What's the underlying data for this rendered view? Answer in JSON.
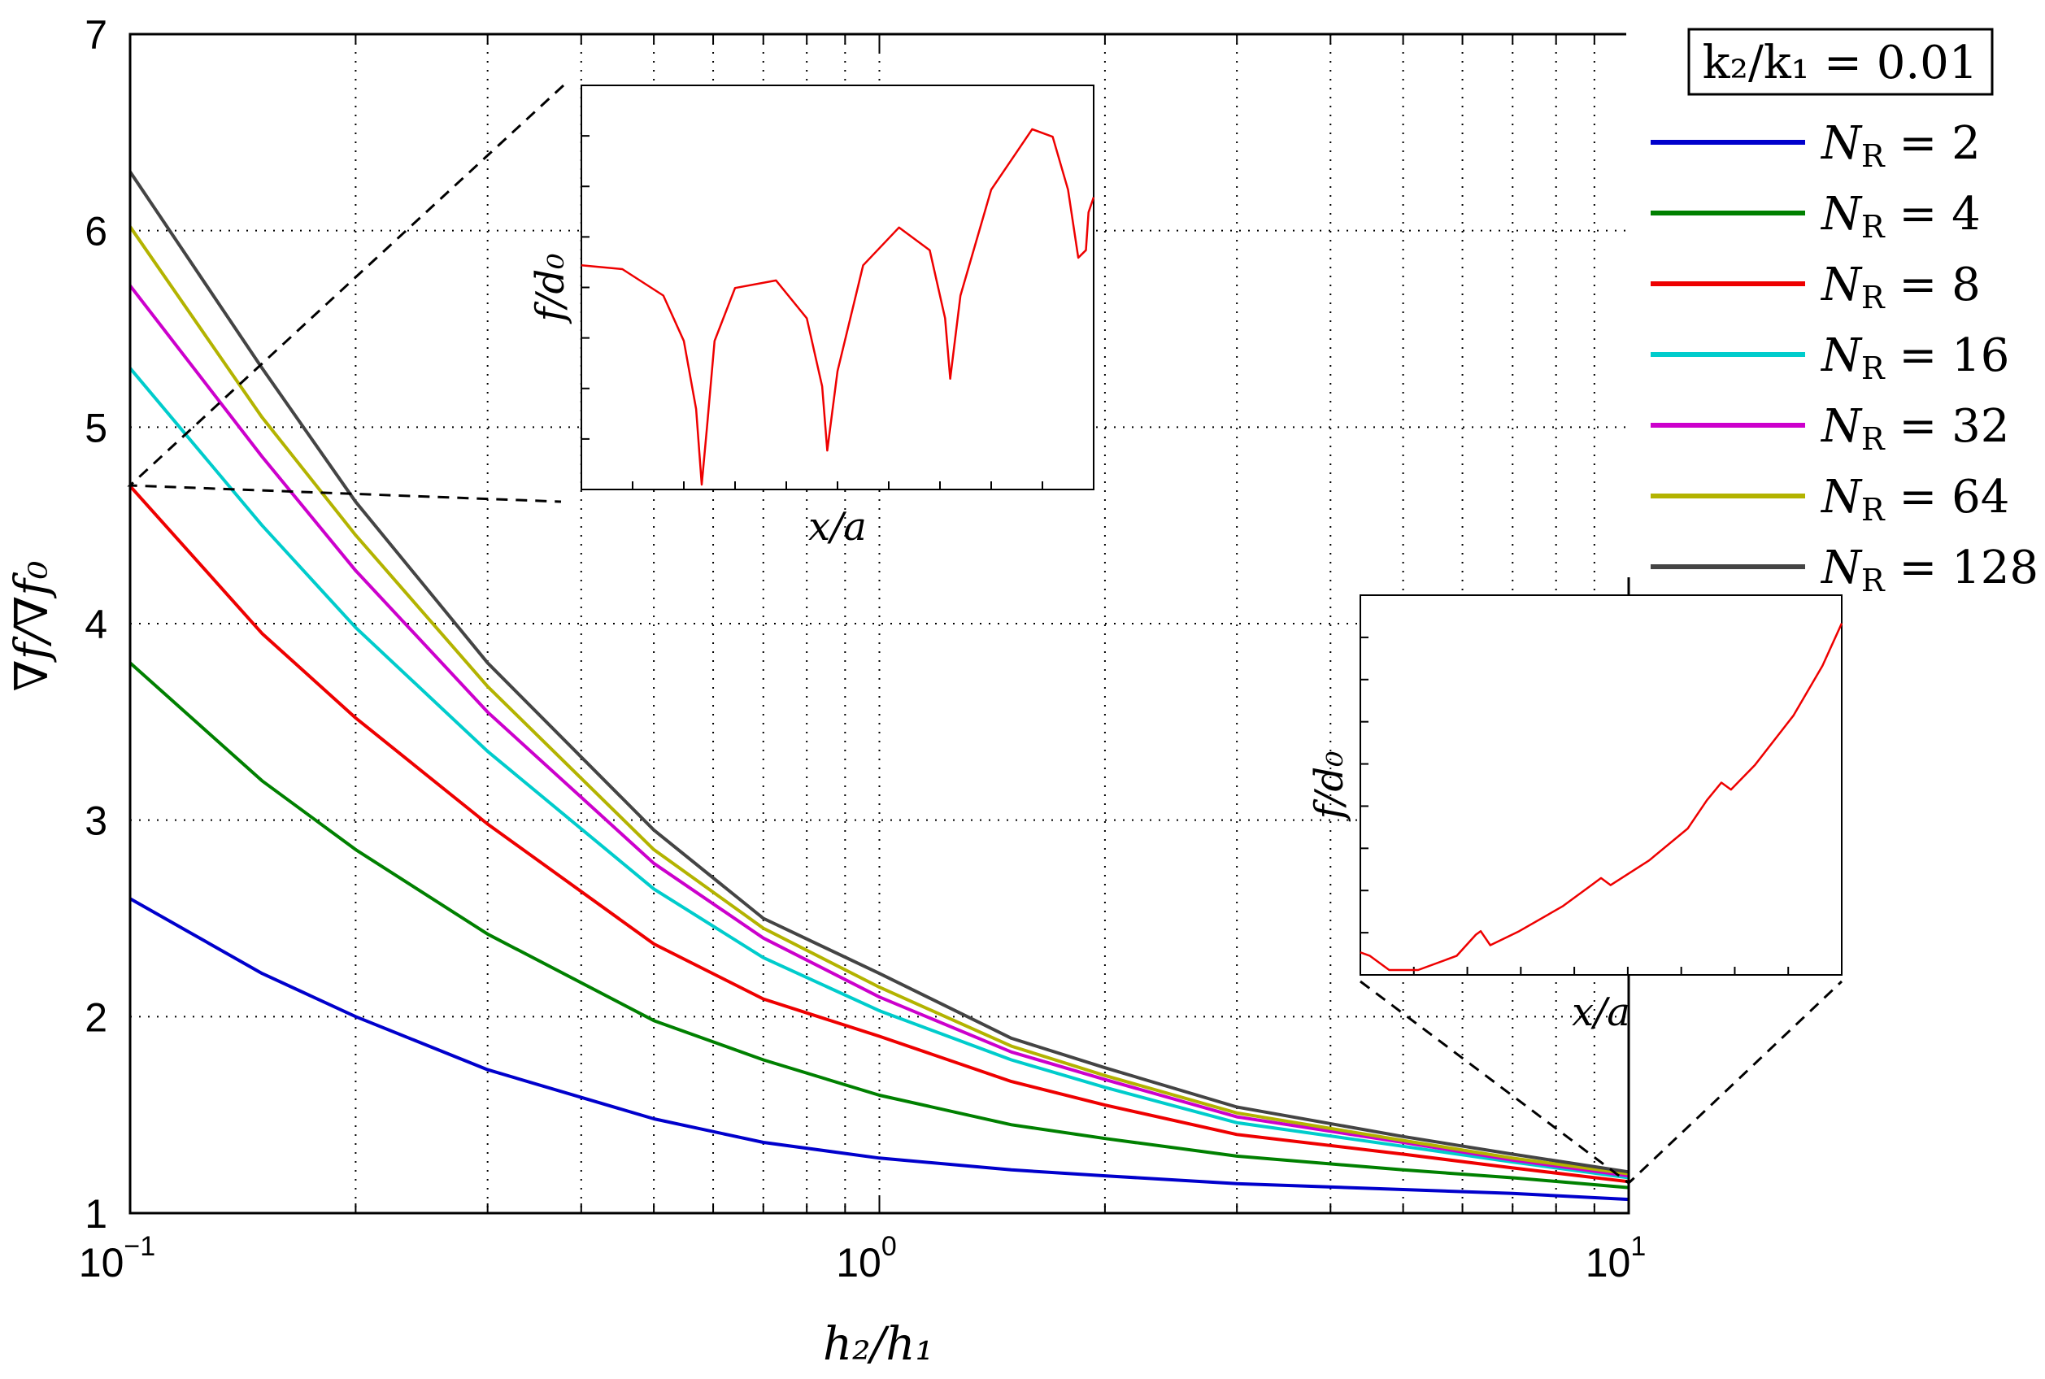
{
  "chart_data": {
    "type": "line",
    "xscale": "log",
    "xlim": [
      0.1,
      10
    ],
    "ylim": [
      1,
      7
    ],
    "xlabel": "h₂/h₁",
    "ylabel": "∇f/∇f₀",
    "x_ticks": [
      {
        "base": "10",
        "exp": "−1",
        "value": 0.1
      },
      {
        "base": "10",
        "exp": "0",
        "value": 1
      },
      {
        "base": "10",
        "exp": "1",
        "value": 10
      }
    ],
    "y_ticks": [
      "1",
      "2",
      "3",
      "4",
      "5",
      "6",
      "7"
    ],
    "grid": true,
    "annotation": "k₂/k₁ = 0.01",
    "x": [
      0.1,
      0.15,
      0.2,
      0.3,
      0.5,
      0.7,
      1,
      1.5,
      2,
      3,
      5,
      7,
      10
    ],
    "series": [
      {
        "name": "N_R = 2",
        "label": "N",
        "subscript": "R",
        "suffix": " = 2",
        "color": "#0000cc",
        "values": [
          2.6,
          2.22,
          2.0,
          1.73,
          1.48,
          1.36,
          1.28,
          1.22,
          1.19,
          1.15,
          1.12,
          1.1,
          1.07
        ]
      },
      {
        "name": "N_R = 4",
        "label": "N",
        "subscript": "R",
        "suffix": " = 4",
        "color": "#008000",
        "values": [
          3.8,
          3.2,
          2.85,
          2.42,
          1.98,
          1.78,
          1.6,
          1.45,
          1.38,
          1.29,
          1.22,
          1.18,
          1.13
        ]
      },
      {
        "name": "N_R = 8",
        "label": "N",
        "subscript": "R",
        "suffix": " = 8",
        "color": "#ee0000",
        "values": [
          4.7,
          3.95,
          3.52,
          2.98,
          2.37,
          2.09,
          1.9,
          1.67,
          1.55,
          1.4,
          1.3,
          1.23,
          1.16
        ]
      },
      {
        "name": "N_R = 16",
        "label": "N",
        "subscript": "R",
        "suffix": " = 16",
        "color": "#00cccc",
        "values": [
          5.3,
          4.5,
          3.98,
          3.35,
          2.65,
          2.3,
          2.03,
          1.78,
          1.64,
          1.46,
          1.34,
          1.26,
          1.18
        ]
      },
      {
        "name": "N_R = 32",
        "label": "N",
        "subscript": "R",
        "suffix": " = 32",
        "color": "#cc00cc",
        "values": [
          5.72,
          4.85,
          4.27,
          3.55,
          2.78,
          2.4,
          2.1,
          1.82,
          1.68,
          1.49,
          1.36,
          1.27,
          1.19
        ]
      },
      {
        "name": "N_R = 64",
        "label": "N",
        "subscript": "R",
        "suffix": " = 64",
        "color": "#b3b300",
        "values": [
          6.02,
          5.05,
          4.45,
          3.68,
          2.85,
          2.45,
          2.15,
          1.85,
          1.7,
          1.51,
          1.37,
          1.28,
          1.2
        ]
      },
      {
        "name": "N_R = 128",
        "label": "N",
        "subscript": "R",
        "suffix": " = 128",
        "color": "#444444",
        "values": [
          6.3,
          5.3,
          4.62,
          3.8,
          2.95,
          2.5,
          2.22,
          1.89,
          1.74,
          1.54,
          1.39,
          1.3,
          1.21
        ]
      }
    ],
    "insets": [
      {
        "name": "inset-left",
        "xlabel": "x/a",
        "ylabel": "f/d₀",
        "color": "#ee0000",
        "note": "zoom of curves near h₂/h₁ = 0.1, f/d₀ vs x/a",
        "x": [
          0,
          0.08,
          0.16,
          0.2,
          0.224,
          0.235,
          0.245,
          0.26,
          0.3,
          0.38,
          0.44,
          0.47,
          0.48,
          0.5,
          0.55,
          0.62,
          0.68,
          0.71,
          0.72,
          0.74,
          0.8,
          0.88,
          0.92,
          0.95,
          0.97,
          0.985,
          0.99,
          1.0
        ],
        "y": [
          0.58,
          0.57,
          0.5,
          0.38,
          0.2,
          0.0,
          0.15,
          0.38,
          0.52,
          0.54,
          0.44,
          0.26,
          0.09,
          0.3,
          0.58,
          0.68,
          0.62,
          0.44,
          0.28,
          0.5,
          0.78,
          0.94,
          0.92,
          0.78,
          0.6,
          0.62,
          0.72,
          0.76
        ]
      },
      {
        "name": "inset-right",
        "xlabel": "x/a",
        "ylabel": "f/d₀",
        "color": "#ee0000",
        "note": "zoom of curves near h₂/h₁ = 10, f/d₀ vs x/a",
        "x": [
          0,
          0.02,
          0.06,
          0.12,
          0.2,
          0.24,
          0.25,
          0.27,
          0.33,
          0.42,
          0.48,
          0.5,
          0.52,
          0.6,
          0.68,
          0.72,
          0.75,
          0.77,
          0.82,
          0.9,
          0.96,
          1.0
        ],
        "y": [
          0.05,
          0.04,
          0.0,
          0.0,
          0.04,
          0.1,
          0.11,
          0.07,
          0.11,
          0.18,
          0.24,
          0.26,
          0.24,
          0.31,
          0.4,
          0.48,
          0.53,
          0.51,
          0.58,
          0.72,
          0.86,
          0.98
        ]
      }
    ]
  }
}
